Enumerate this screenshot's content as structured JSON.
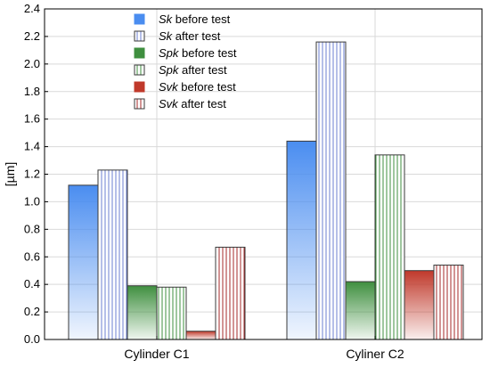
{
  "chart_data": {
    "type": "bar",
    "title": "",
    "xlabel": "",
    "ylabel": "[µm]",
    "ylim": [
      0,
      2.4
    ],
    "yticks": [
      "0.0",
      "0.2",
      "0.4",
      "0.6",
      "0.8",
      "1.0",
      "1.2",
      "1.4",
      "1.6",
      "1.8",
      "2.0",
      "2.2",
      "2.4"
    ],
    "grid": true,
    "legend_position": "top-left",
    "categories": [
      "Cylinder C1",
      "Cyliner C2"
    ],
    "series": [
      {
        "name_italic": "Sk",
        "name_rest": " before test",
        "values": [
          1.12,
          1.44
        ],
        "color": "#4a8df0",
        "fill": "gradient"
      },
      {
        "name_italic": "Sk",
        "name_rest": " after test",
        "values": [
          1.23,
          2.16
        ],
        "color": "#6b7fd0",
        "fill": "hatch"
      },
      {
        "name_italic": "Spk",
        "name_rest": " before test",
        "values": [
          0.39,
          0.42
        ],
        "color": "#3f8f3f",
        "fill": "gradient"
      },
      {
        "name_italic": "Spk",
        "name_rest": " after test",
        "values": [
          0.38,
          1.34
        ],
        "color": "#3f8f3f",
        "fill": "hatch"
      },
      {
        "name_italic": "Svk",
        "name_rest": " before test",
        "values": [
          0.06,
          0.5
        ],
        "color": "#c0392b",
        "fill": "gradient"
      },
      {
        "name_italic": "Svk",
        "name_rest": " after test",
        "values": [
          0.67,
          0.54
        ],
        "color": "#a52a2a",
        "fill": "hatch"
      }
    ]
  }
}
